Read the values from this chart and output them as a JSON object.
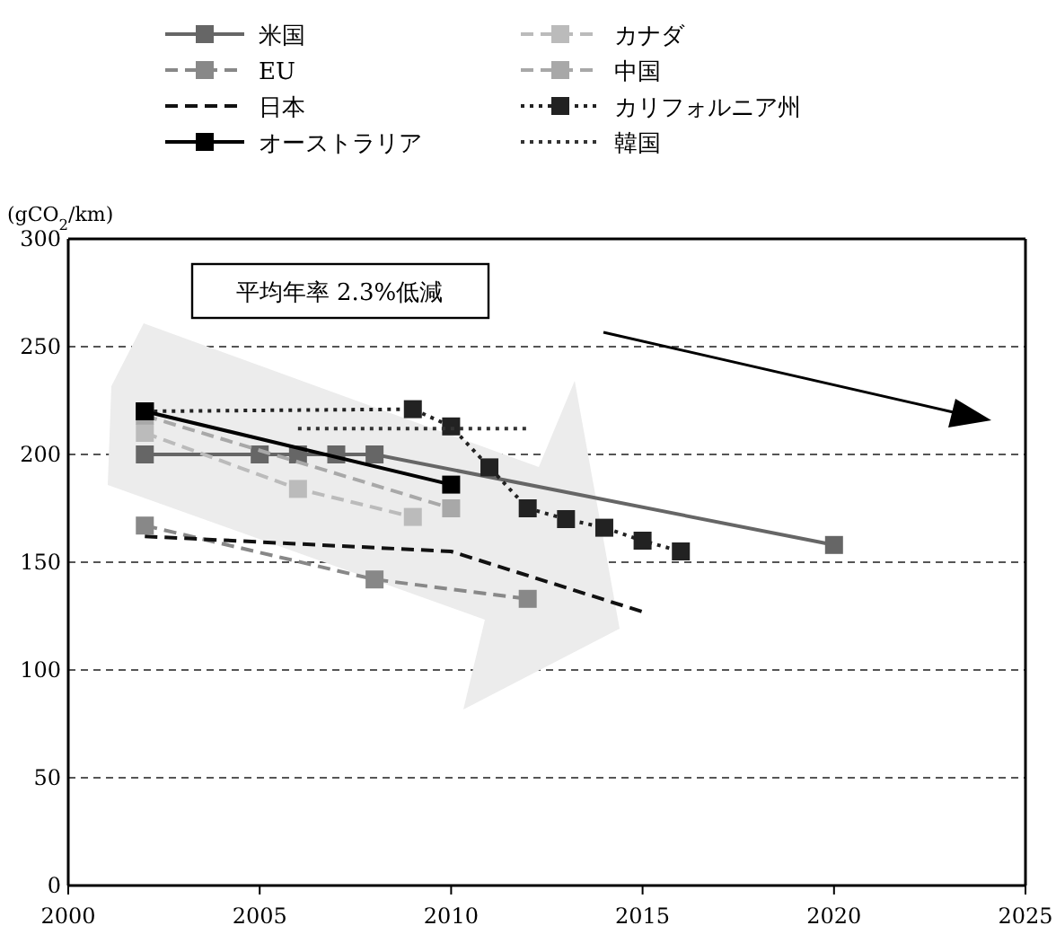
{
  "chart_data": {
    "type": "line",
    "ylabel": "(gCO$_{2}$/km)",
    "xlim": [
      2000,
      2025
    ],
    "ylim": [
      0,
      300
    ],
    "xticks": [
      2000,
      2005,
      2010,
      2015,
      2020,
      2025
    ],
    "yticks": [
      0,
      50,
      100,
      150,
      200,
      250,
      300
    ],
    "grid": "y",
    "legend": "top",
    "annotations": [
      "平均年率 2.3%低減"
    ],
    "series": [
      {
        "name": "米国",
        "color": "#666666",
        "line_style": "solid",
        "marker": "square",
        "x": [
          2002,
          2005,
          2006,
          2007,
          2008,
          2020
        ],
        "values": [
          200,
          200,
          200,
          200,
          200,
          158
        ]
      },
      {
        "name": "カナダ",
        "color": "#bbbbbb",
        "line_style": "dashed",
        "marker": "square",
        "x": [
          2002,
          2006,
          2009
        ],
        "values": [
          210,
          184,
          171
        ]
      },
      {
        "name": "EU",
        "color": "#888888",
        "line_style": "dashed",
        "marker": "square",
        "x": [
          2002,
          2008,
          2012
        ],
        "values": [
          167,
          142,
          133
        ]
      },
      {
        "name": "中国",
        "color": "#a8a8a8",
        "line_style": "dashed",
        "marker": "square",
        "x": [
          2002,
          2010
        ],
        "values": [
          218,
          175
        ]
      },
      {
        "name": "日本",
        "color": "#111111",
        "line_style": "dashed",
        "marker": "none",
        "x": [
          2002,
          2010,
          2015
        ],
        "values": [
          162,
          155,
          127
        ]
      },
      {
        "name": "カリフォルニア州",
        "color": "#222222",
        "line_style": "dotted",
        "marker": "square",
        "x": [
          2002,
          2009,
          2010,
          2011,
          2012,
          2013,
          2014,
          2015,
          2016
        ],
        "values": [
          220,
          221,
          213,
          194,
          175,
          170,
          166,
          160,
          155
        ]
      },
      {
        "name": "オーストラリア",
        "color": "#000000",
        "line_style": "solid",
        "marker": "square",
        "x": [
          2002,
          2010
        ],
        "values": [
          220,
          186
        ]
      },
      {
        "name": "韓国",
        "color": "#333333",
        "line_style": "dotted",
        "marker": "none",
        "x": [
          2006,
          2012
        ],
        "values": [
          212,
          212
        ]
      }
    ]
  }
}
